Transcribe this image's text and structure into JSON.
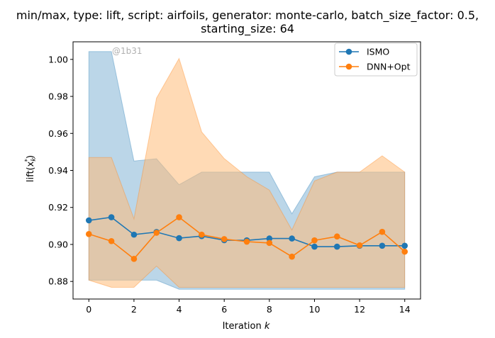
{
  "chart_data": {
    "type": "line",
    "title_line1": "min/max, type: lift, script: airfoils, generator: monte-carlo, batch_size_factor: 0.5,",
    "title_line2": "starting_size: 64",
    "xlabel_main": "Iteration ",
    "xlabel_italic": "k",
    "ylabel": "lift(x",
    "ylabel_sub": "k",
    "ylabel_sup": "*",
    "ylabel_close": ")",
    "watermark": "@1b31",
    "x": [
      0,
      1,
      2,
      3,
      4,
      5,
      6,
      7,
      8,
      9,
      10,
      11,
      12,
      13,
      14
    ],
    "xlim": [
      -0.7,
      14.7
    ],
    "ylim": [
      0.8705,
      1.0095
    ],
    "xticks": [
      0,
      2,
      4,
      6,
      8,
      10,
      12,
      14
    ],
    "yticks": [
      0.88,
      0.9,
      0.92,
      0.94,
      0.96,
      0.98,
      1.0
    ],
    "ytick_labels": [
      "0.88",
      "0.90",
      "0.92",
      "0.94",
      "0.96",
      "0.98",
      "1.00"
    ],
    "legend_position": "top-right",
    "series": [
      {
        "name": "ISMO",
        "color": "#1f77b4",
        "fill": "#1f77b4",
        "values": [
          0.913,
          0.9147,
          0.9053,
          0.9067,
          0.9034,
          0.9045,
          0.9023,
          0.9022,
          0.9032,
          0.9032,
          0.8988,
          0.8988,
          0.8993,
          0.8993,
          0.8993
        ],
        "upper": [
          1.0042,
          1.0042,
          0.9451,
          0.9463,
          0.9323,
          0.9391,
          0.9391,
          0.9391,
          0.9391,
          0.9166,
          0.9366,
          0.9391,
          0.9391,
          0.9391,
          0.9391
        ],
        "lower": [
          0.8807,
          0.8807,
          0.8807,
          0.8807,
          0.8758,
          0.8758,
          0.8758,
          0.8758,
          0.8758,
          0.8758,
          0.8758,
          0.8758,
          0.8758,
          0.8758,
          0.8758
        ]
      },
      {
        "name": "DNN+Opt",
        "color": "#ff7f0e",
        "fill": "#ffbb78",
        "values": [
          0.9056,
          0.9018,
          0.8922,
          0.9063,
          0.9147,
          0.9053,
          0.9029,
          0.9015,
          0.9008,
          0.8934,
          0.9022,
          0.9043,
          0.8995,
          0.9068,
          0.8961
        ],
        "upper": [
          0.947,
          0.947,
          0.9138,
          0.9791,
          1.0005,
          0.9608,
          0.9464,
          0.9366,
          0.9294,
          0.9078,
          0.9343,
          0.9391,
          0.9391,
          0.9479,
          0.9391
        ],
        "lower": [
          0.8807,
          0.8768,
          0.8768,
          0.8883,
          0.8768,
          0.8768,
          0.8768,
          0.8768,
          0.8768,
          0.8768,
          0.8768,
          0.8768,
          0.8768,
          0.8768,
          0.8768
        ]
      }
    ]
  }
}
